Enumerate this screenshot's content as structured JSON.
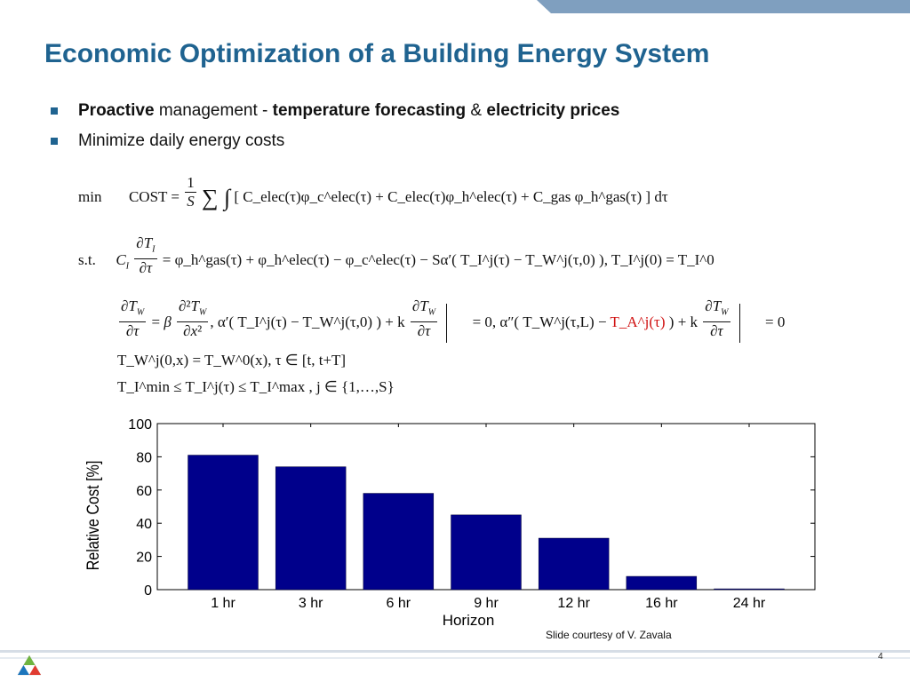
{
  "slide": {
    "title": "Economic Optimization of a Building Energy System",
    "bullets": [
      {
        "bold1": "Proactive",
        "text1": " management - ",
        "bold2": "temperature forecasting",
        "text2": "  & ",
        "bold3": "electricity prices"
      },
      {
        "text": "Minimize daily energy costs"
      }
    ],
    "credit": "Slide courtesy of V. Zavala",
    "page_number": "4",
    "colors": {
      "title": "#1f6390",
      "bar": "#00008b",
      "accent_red": "#d01010",
      "top_bar": "#7f9fbf"
    }
  },
  "equations": {
    "min_label": "min",
    "st_label": "s.t.",
    "cost": "COST =",
    "line_cost": "[ C_elec(τ)φ_c^elec(τ) + C_elec(τ)φ_h^elec(τ) + C_gas φ_h^gas(τ) ] dτ",
    "st_rhs": "= φ_h^gas(τ) + φ_h^elec(τ) − φ_c^elec(τ) − Sα′( T_I^j(τ) − T_W^j(τ,0) ),   T_I^j(0) = T_I^0",
    "pde_mid": "α′( T_I^j(τ) − T_W^j(τ,0) ) + k",
    "bc0": "= 0,",
    "alpha2": "α″( T_W^j(τ,L) − ",
    "ta": "T_A^j(τ)",
    "alpha2_end": " ) + k",
    "bcL": "= 0",
    "init": "T_W^j(0,x) = T_W^0(x),  τ ∈ [t, t+T]",
    "bounds": "T_I^min ≤ T_I^j(τ) ≤ T_I^max ,  j ∈ {1,…,S}"
  },
  "chart_data": {
    "type": "bar",
    "categories": [
      "1 hr",
      "3 hr",
      "6 hr",
      "9 hr",
      "12 hr",
      "16 hr",
      "24 hr"
    ],
    "values": [
      81,
      74,
      58,
      45,
      31,
      8,
      0.5
    ],
    "xlabel": "Horizon",
    "ylabel": "Relative Cost [%]",
    "ylim": [
      0,
      100
    ],
    "yticks": [
      0,
      20,
      40,
      60,
      80,
      100
    ],
    "grid": false,
    "bar_color": "#00008b"
  }
}
